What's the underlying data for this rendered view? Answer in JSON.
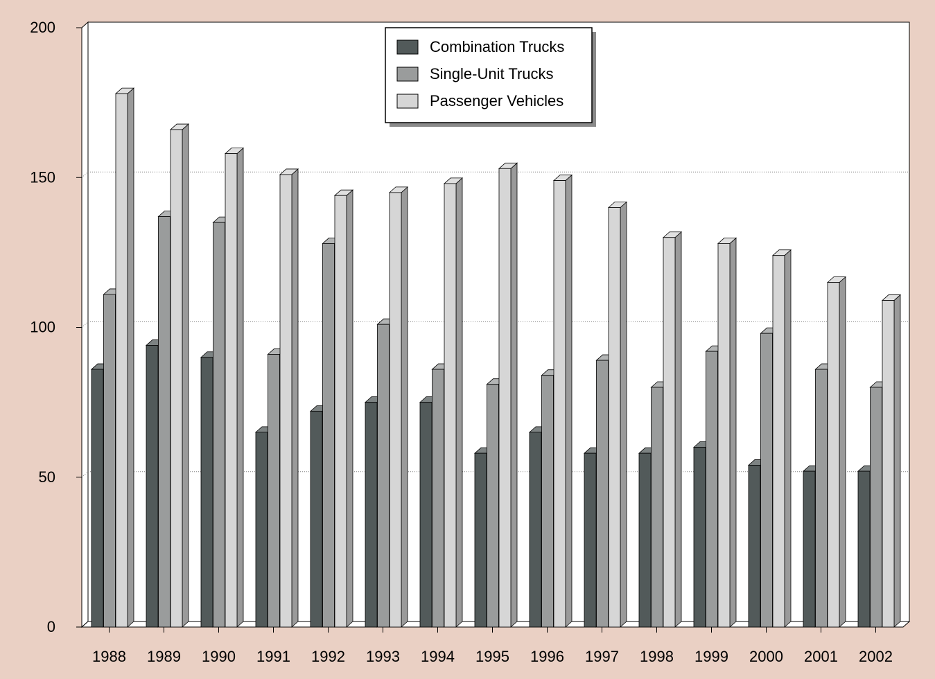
{
  "chart_data": {
    "type": "bar",
    "title": "",
    "xlabel": "",
    "ylabel": "",
    "ylim": [
      0,
      200
    ],
    "yticks": [
      0,
      50,
      100,
      150,
      200
    ],
    "grid": true,
    "legend_position": "top-center",
    "categories": [
      "1988",
      "1989",
      "1990",
      "1991",
      "1992",
      "1993",
      "1994",
      "1995",
      "1996",
      "1997",
      "1998",
      "1999",
      "2000",
      "2001",
      "2002"
    ],
    "series": [
      {
        "name": "Combination Trucks",
        "color": "#525a5a",
        "values": [
          86,
          94,
          90,
          65,
          72,
          75,
          75,
          58,
          65,
          58,
          58,
          60,
          54,
          52,
          52
        ]
      },
      {
        "name": "Single-Unit Trucks",
        "color": "#9a9c9c",
        "values": [
          111,
          137,
          135,
          91,
          128,
          101,
          86,
          81,
          84,
          89,
          80,
          92,
          98,
          86,
          80
        ]
      },
      {
        "name": "Passenger Vehicles",
        "color": "#d6d6d6",
        "values": [
          178,
          166,
          158,
          151,
          144,
          145,
          148,
          153,
          149,
          140,
          130,
          128,
          124,
          115,
          109
        ]
      }
    ]
  }
}
